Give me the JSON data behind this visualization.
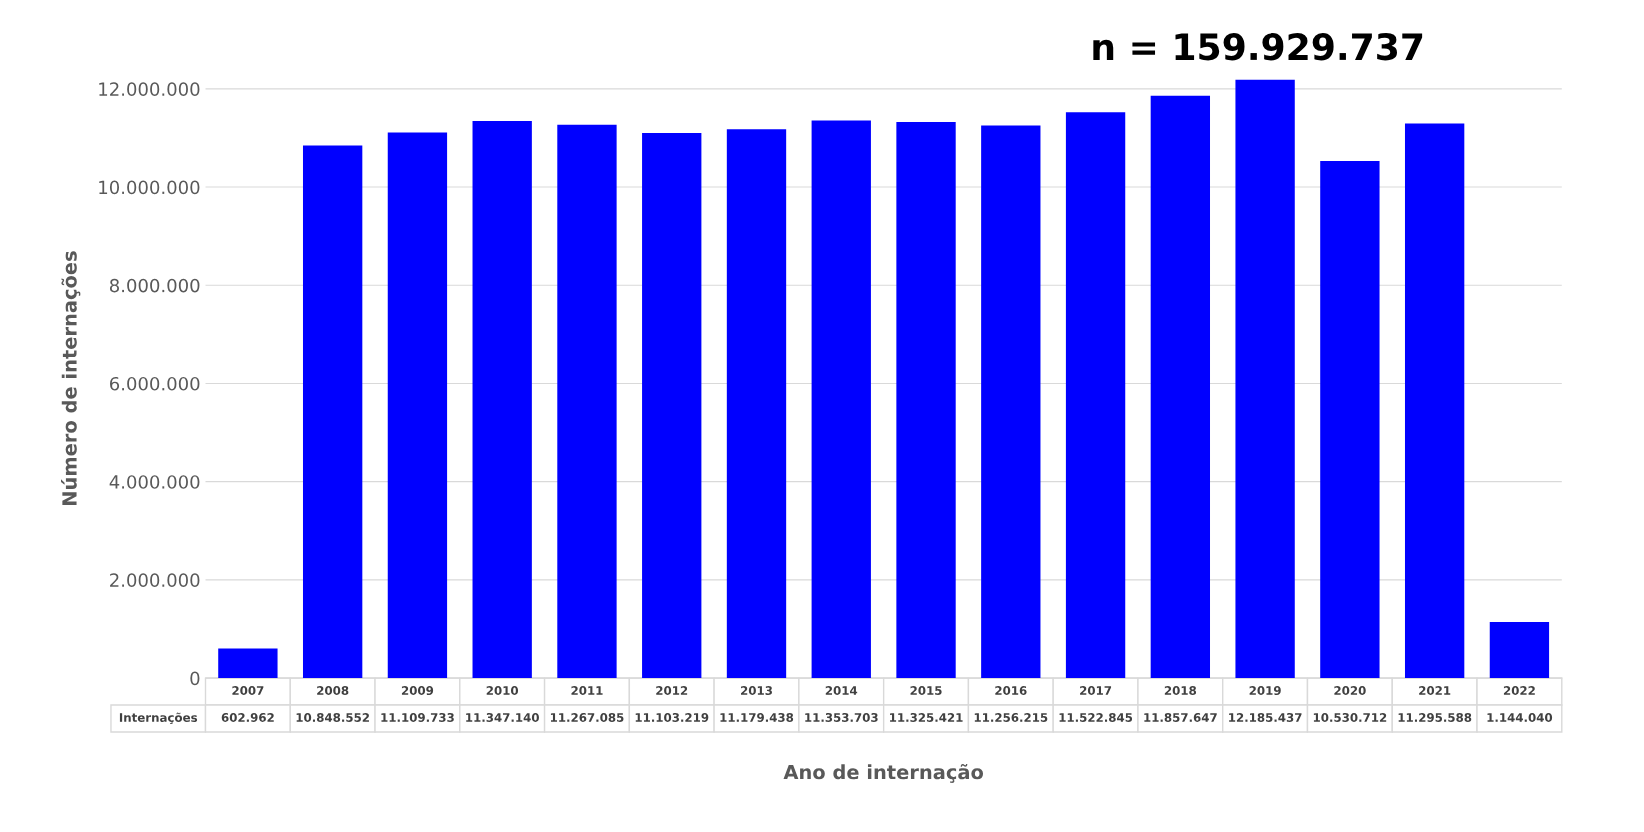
{
  "chart_data": {
    "type": "bar",
    "xlabel": "Ano de internação",
    "ylabel": "Número de internações",
    "annotations": [
      "n = 159.929.737"
    ],
    "categories": [
      "2007",
      "2008",
      "2009",
      "2010",
      "2011",
      "2012",
      "2013",
      "2014",
      "2015",
      "2016",
      "2017",
      "2018",
      "2019",
      "2020",
      "2021",
      "2022"
    ],
    "series": [
      {
        "name": "Internações",
        "color": "#0000ff",
        "values": [
          602962,
          10848552,
          11109733,
          11347140,
          11267085,
          11103219,
          11179438,
          11353703,
          11325421,
          11256215,
          11522845,
          11857647,
          12185437,
          10530712,
          11295588,
          1144040
        ],
        "value_labels": [
          "602.962",
          "10.848.552",
          "11.109.733",
          "11.347.140",
          "11.267.085",
          "11.103.219",
          "11.179.438",
          "11.353.703",
          "11.325.421",
          "11.256.215",
          "11.522.845",
          "11.857.647",
          "12.185.437",
          "10.530.712",
          "11.295.588",
          "1.144.040"
        ]
      }
    ],
    "ylim": [
      0,
      12200000
    ],
    "yticks": [
      0,
      {
        "value": 2000000,
        "label": "2.000.000"
      },
      {
        "value": 4000000,
        "label": "4.000.000"
      },
      {
        "value": 6000000,
        "label": "6.000.000"
      },
      {
        "value": 8000000,
        "label": "8.000.000"
      },
      {
        "value": 10000000,
        "label": "10.000.000"
      },
      {
        "value": 12000000,
        "label": "12.000.000"
      }
    ],
    "grid": "y",
    "legend": false
  }
}
